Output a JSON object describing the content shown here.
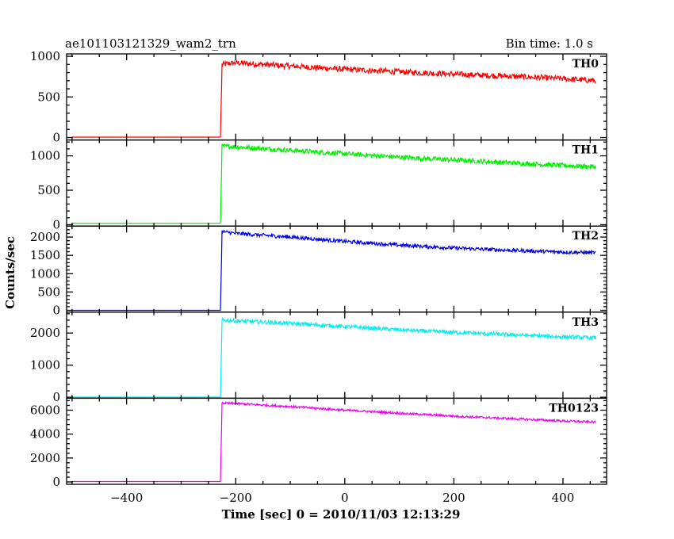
{
  "header": {
    "title": "ae101103121329_wam2_trn",
    "bin_time": "Bin time: 1.0 s"
  },
  "chart_data": {
    "type": "line",
    "xlabel": "Time [sec] 0 = 2010/11/03 12:13:29",
    "ylabel": "Counts/sec",
    "xlim": [
      -510,
      480
    ],
    "x_ticks": [
      -400,
      -200,
      0,
      200,
      400
    ],
    "panels": [
      {
        "name": "TH0",
        "color": "#ff0000",
        "ylim": [
          -30,
          1030
        ],
        "y_ticks": [
          0,
          500,
          1000
        ],
        "series": {
          "x": [
            -500,
            -228,
            -225,
            -200,
            -100,
            0,
            100,
            200,
            300,
            400,
            460
          ],
          "y": [
            5,
            5,
            900,
            920,
            880,
            840,
            810,
            780,
            755,
            725,
            700
          ]
        },
        "noise": 35
      },
      {
        "name": "TH1",
        "color": "#00ee00",
        "ylim": [
          -20,
          1230
        ],
        "y_ticks": [
          0,
          500,
          1000
        ],
        "series": {
          "x": [
            -500,
            -228,
            -225,
            -200,
            -100,
            0,
            100,
            200,
            300,
            400,
            460
          ],
          "y": [
            20,
            20,
            1140,
            1130,
            1080,
            1030,
            980,
            940,
            900,
            860,
            840
          ]
        },
        "noise": 35
      },
      {
        "name": "TH2",
        "color": "#0000ee",
        "ylim": [
          -50,
          2300
        ],
        "y_ticks": [
          0,
          500,
          1000,
          1500,
          2000
        ],
        "series": {
          "x": [
            -500,
            -228,
            -225,
            -200,
            -100,
            0,
            100,
            200,
            300,
            400,
            460
          ],
          "y": [
            0,
            0,
            2150,
            2100,
            2000,
            1880,
            1780,
            1700,
            1640,
            1590,
            1570
          ]
        },
        "noise": 50
      },
      {
        "name": "TH3",
        "color": "#00eeee",
        "ylim": [
          -30,
          2650
        ],
        "y_ticks": [
          0,
          1000,
          2000
        ],
        "series": {
          "x": [
            -500,
            -228,
            -225,
            -200,
            -100,
            0,
            100,
            200,
            300,
            400,
            460
          ],
          "y": [
            5,
            5,
            2400,
            2380,
            2300,
            2200,
            2100,
            2020,
            1950,
            1880,
            1850
          ]
        },
        "noise": 60
      },
      {
        "name": "TH0123",
        "color": "#ee00ee",
        "ylim": [
          -200,
          7000
        ],
        "y_ticks": [
          0,
          2000,
          4000,
          6000
        ],
        "series": {
          "x": [
            -500,
            -228,
            -225,
            -200,
            -100,
            0,
            100,
            200,
            300,
            400,
            460
          ],
          "y": [
            30,
            30,
            6600,
            6550,
            6300,
            6000,
            5750,
            5500,
            5300,
            5100,
            5000
          ]
        },
        "noise": 90
      }
    ]
  }
}
